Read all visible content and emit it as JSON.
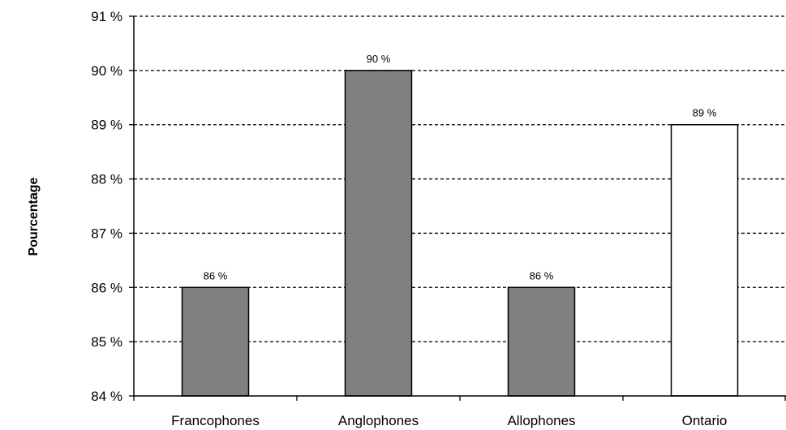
{
  "chart_data": {
    "type": "bar",
    "title": "",
    "xlabel": "",
    "ylabel": "Pourcentage",
    "categories": [
      "Francophones",
      "Anglophones",
      "Allophones",
      "Ontario"
    ],
    "values": [
      86,
      90,
      86,
      89
    ],
    "data_labels": [
      "86 %",
      "90 %",
      "86 %",
      "89 %"
    ],
    "bar_colors": [
      "#808080",
      "#808080",
      "#808080",
      "#ffffff"
    ],
    "bar_edge_color": "#000000",
    "ylim": [
      84,
      91
    ],
    "yticks": [
      84,
      85,
      86,
      87,
      88,
      89,
      90,
      91
    ],
    "ytick_labels": [
      "84 %",
      "85 %",
      "86 %",
      "87 %",
      "88 %",
      "89 %",
      "90 %",
      "91 %"
    ],
    "grid": "dashed horizontal",
    "legend": "none"
  }
}
